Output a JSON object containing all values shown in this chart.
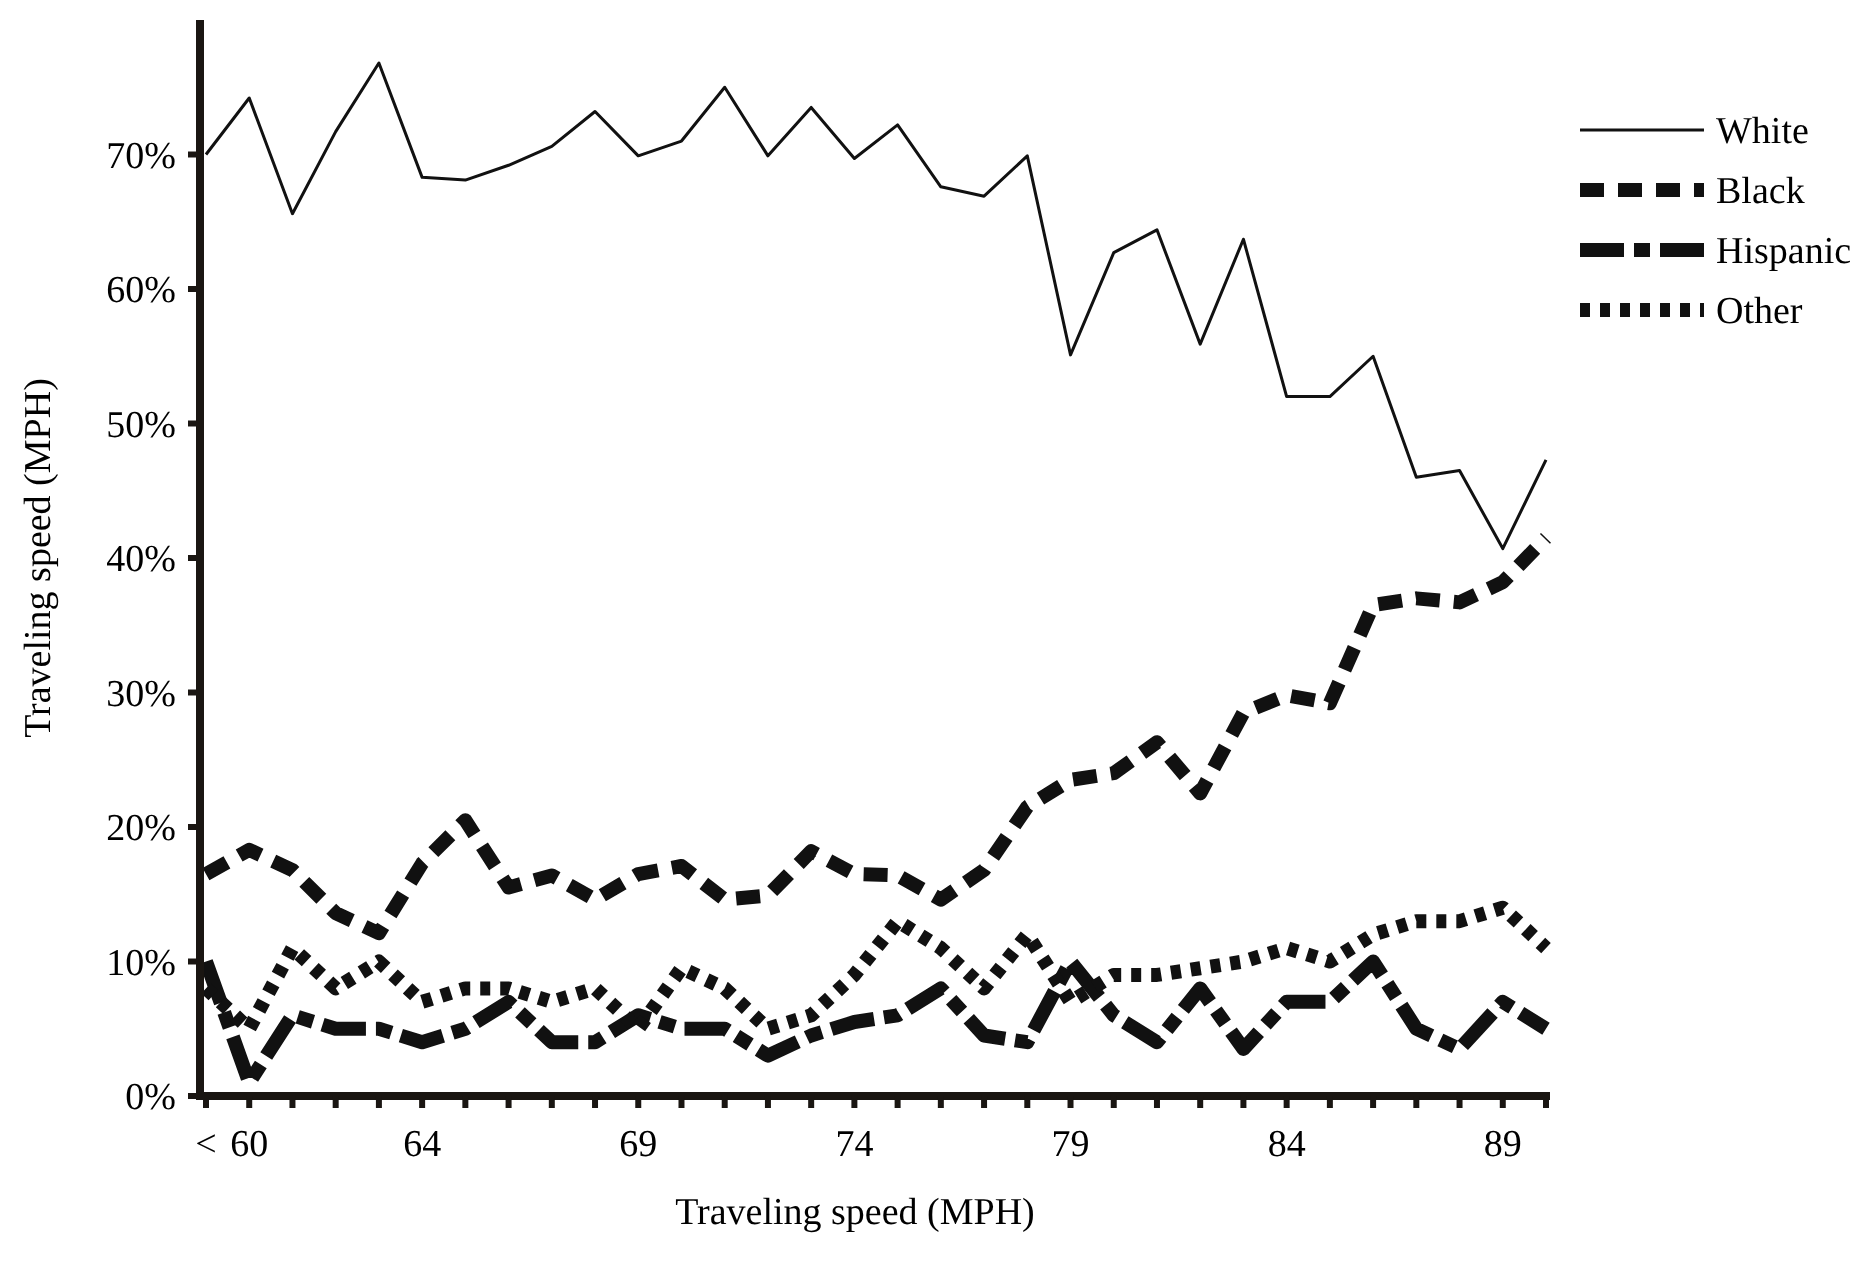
{
  "chart_data": {
    "type": "line",
    "xlabel": "Traveling speed (MPH)",
    "ylabel": "Traveling speed (MPH)",
    "categories": [
      "<",
      "60",
      null,
      null,
      null,
      "64",
      null,
      null,
      null,
      null,
      "69",
      null,
      null,
      null,
      null,
      "74",
      null,
      null,
      null,
      null,
      "79",
      null,
      null,
      null,
      null,
      "84",
      null,
      null,
      null,
      null,
      "89",
      null
    ],
    "series": [
      {
        "name": "White",
        "color": "#111111",
        "line_style": "solid",
        "values": [
          70.0,
          74.2,
          65.6,
          71.7,
          76.8,
          68.3,
          68.1,
          69.2,
          70.6,
          73.2,
          69.9,
          71.0,
          75.0,
          69.9,
          73.5,
          69.7,
          72.2,
          67.6,
          66.9,
          69.9,
          55.1,
          62.7,
          64.4,
          55.9,
          63.7,
          52.0,
          52.0,
          55.0,
          46.0,
          46.5,
          40.7,
          47.3
        ]
      },
      {
        "name": "Black",
        "color": "#111111",
        "line_style": "dashed",
        "values": [
          16.5,
          18.3,
          16.8,
          13.6,
          12.1,
          17.3,
          20.5,
          15.5,
          16.4,
          14.6,
          16.5,
          17.1,
          14.6,
          14.9,
          18.2,
          16.5,
          16.4,
          14.6,
          16.8,
          21.5,
          23.5,
          24.0,
          26.3,
          22.5,
          28.5,
          29.8,
          29.2,
          36.5,
          37.0,
          36.7,
          38.2,
          41.5
        ]
      },
      {
        "name": "Hispanic",
        "color": "#111111",
        "line_style": "dashed",
        "values": [
          10,
          1,
          6,
          5,
          5,
          4,
          5,
          7,
          4,
          4,
          6,
          5,
          5,
          3,
          4.5,
          5.5,
          6,
          8,
          4.5,
          4,
          10,
          6,
          4,
          8,
          3.5,
          7,
          7,
          10,
          5,
          3.5,
          7,
          5
        ]
      },
      {
        "name": "Other",
        "color": "#111111",
        "line_style": "dotted",
        "values": [
          8,
          5,
          11,
          8,
          10,
          7,
          8,
          8,
          7,
          8,
          5,
          9.5,
          8,
          5,
          6,
          9,
          13,
          11,
          8,
          12,
          7,
          9,
          9,
          9.5,
          10,
          11,
          10,
          12,
          13,
          13,
          14,
          11
        ]
      }
    ],
    "ylim": [
      0,
      80
    ],
    "yticks": [
      {
        "value": 0,
        "label": "0%"
      },
      {
        "value": 10,
        "label": "10%"
      },
      {
        "value": 20,
        "label": "20%"
      },
      {
        "value": 30,
        "label": "30%"
      },
      {
        "value": 40,
        "label": "40%"
      },
      {
        "value": 50,
        "label": "50%"
      },
      {
        "value": 60,
        "label": "60%"
      },
      {
        "value": 70,
        "label": "70%"
      }
    ],
    "grid": false,
    "legend": "top right",
    "marker": "none"
  }
}
